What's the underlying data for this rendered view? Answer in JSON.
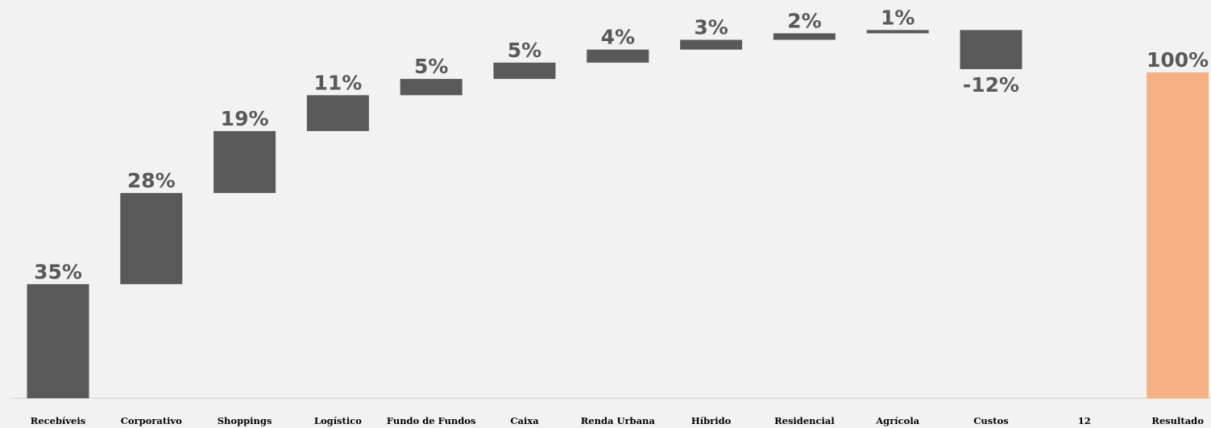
{
  "chart_data": {
    "type": "bar",
    "subtype": "waterfall",
    "categories": [
      "Recebíveis",
      "Corporativo",
      "Shoppings",
      "Logístico",
      "Fundo de Fundos",
      "Caixa",
      "Renda Urbana",
      "Híbrido",
      "Residencial",
      "Agrícola",
      "Custos",
      "12",
      "Resultado"
    ],
    "values": [
      35,
      28,
      19,
      11,
      5,
      5,
      4,
      3,
      2,
      1,
      -12,
      null,
      100
    ],
    "data_labels": [
      "35%",
      "28%",
      "19%",
      "11%",
      "5%",
      "5%",
      "4%",
      "3%",
      "2%",
      "1%",
      "-12%",
      "",
      "100%"
    ],
    "total_index": 12,
    "ylim": [
      0,
      112
    ],
    "grid": false,
    "legend": "none",
    "title": "",
    "xlabel": "",
    "ylabel": "",
    "colors": {
      "increment": "#595959",
      "total": "#f4b183",
      "label": "#595959",
      "category_label": "#000000",
      "axis": "#d9d9d9",
      "background": "#f2f2f2"
    }
  }
}
